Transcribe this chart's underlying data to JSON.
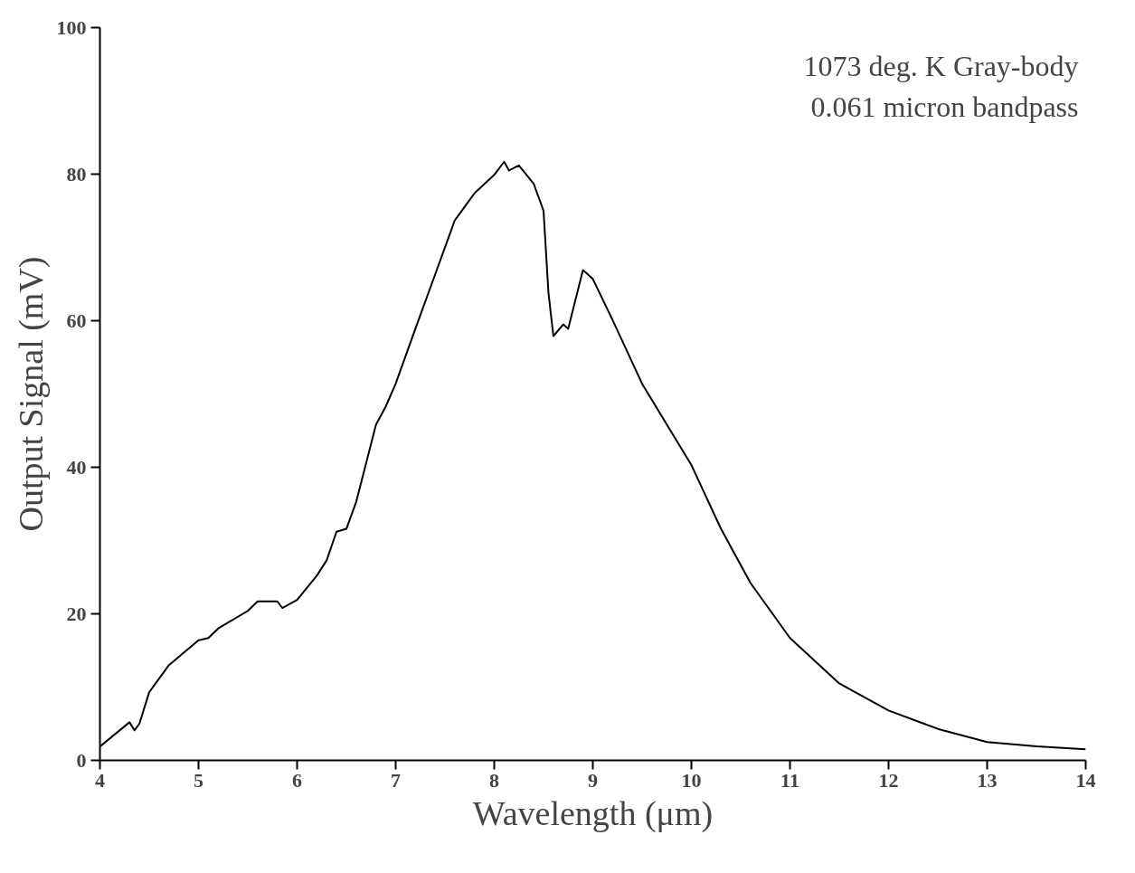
{
  "chart_data": {
    "type": "line",
    "xlabel": "Wavelength (μm)",
    "ylabel": "Output Signal (mV)",
    "annotations": [
      "1073 deg. K  Gray-body",
      "0.061 micron  bandpass"
    ],
    "xlim": [
      4,
      14
    ],
    "ylim": [
      0,
      100
    ],
    "xticks": [
      4,
      5,
      6,
      7,
      8,
      9,
      10,
      11,
      12,
      13,
      14
    ],
    "yticks": [
      0,
      20,
      40,
      60,
      80,
      100
    ],
    "grid": false,
    "marker": "none",
    "line_style": "solid",
    "series": [
      {
        "color": "#000000",
        "x": [
          4.0,
          4.3,
          4.35,
          4.4,
          4.5,
          4.7,
          5.0,
          5.1,
          5.2,
          5.5,
          5.6,
          5.8,
          5.85,
          6.0,
          6.2,
          6.3,
          6.4,
          6.5,
          6.6,
          6.8,
          6.9,
          7.0,
          7.2,
          7.4,
          7.6,
          7.8,
          8.0,
          8.1,
          8.15,
          8.25,
          8.4,
          8.5,
          8.55,
          8.6,
          8.7,
          8.75,
          8.9,
          9.0,
          9.2,
          9.5,
          10.0,
          10.3,
          10.6,
          11.0,
          11.5,
          12.0,
          12.5,
          13.0,
          13.5,
          14.0
        ],
        "values": [
          1.9,
          5.2,
          4.1,
          5.0,
          9.3,
          13,
          16.4,
          16.7,
          18,
          20.4,
          21.7,
          21.7,
          20.8,
          21.9,
          25.2,
          27.3,
          31.2,
          31.6,
          35.3,
          45.8,
          48.3,
          51.4,
          58.9,
          66.3,
          73.7,
          77.4,
          79.9,
          81.7,
          80.5,
          81.2,
          78.7,
          75,
          63.8,
          57.9,
          59.5,
          58.9,
          66.9,
          65.7,
          60.1,
          51.4,
          40.3,
          31.6,
          24.2,
          16.7,
          10.5,
          6.8,
          4.3,
          2.5,
          1.9,
          1.5
        ]
      }
    ]
  }
}
